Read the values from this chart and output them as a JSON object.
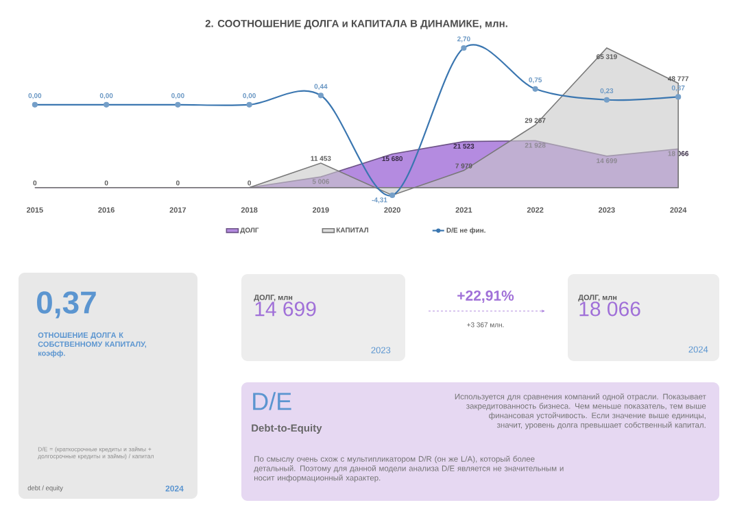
{
  "chart_data": [
    {
      "type": "area",
      "title": "2. СООТНОШЕНИЕ ДОЛГА и КАПИТАЛА В ДИНАМИКЕ, млн.",
      "categories": [
        "2015",
        "2016",
        "2017",
        "2018",
        "2019",
        "2020",
        "2021",
        "2022",
        "2023",
        "2024"
      ],
      "series": [
        {
          "name": "ДОЛГ",
          "color": "#b48be0",
          "values": [
            0,
            0,
            0,
            0,
            5006,
            15680,
            21523,
            21928,
            14699,
            18066
          ],
          "value_labels": [
            null,
            null,
            null,
            null,
            "5 006",
            "15 680",
            "21 523",
            "21 928",
            "14 699",
            "18 066"
          ]
        },
        {
          "name": "КАПИТАЛ",
          "color": "#c8c8c8",
          "values": [
            0,
            0,
            0,
            0,
            11453,
            -3600,
            7979,
            29267,
            65319,
            48777
          ],
          "value_labels": [
            "0",
            "0",
            "0",
            "0",
            "11 453",
            null,
            "7 979",
            "29 267",
            "65 319",
            "48 777"
          ]
        },
        {
          "name": "D/E не фин.",
          "type": "line",
          "axis": "y2",
          "marker": "circle",
          "color": "#3a76b0",
          "values": [
            0,
            0,
            0,
            0,
            0.44,
            -4.31,
            2.7,
            0.75,
            0.23,
            0.37
          ],
          "value_labels": [
            "0,00",
            "0,00",
            "0,00",
            "0,00",
            "0,44",
            "-4,31",
            "2,70",
            "0,75",
            "0,23",
            "0,37"
          ]
        }
      ],
      "tick_labels": "x",
      "legend": "bottom"
    },
    {
      "type": "other",
      "annotations": [
        "0,37",
        "ОТНОШЕНИЕ ДОЛГА К СОБСТВЕННОМУ КАПИТАЛУ, коэфф.",
        "D/E = (краткосрочные кредиты и займы + долгосрочные кредиты и займы) / капитал",
        "debt / equity",
        "2024",
        "ДОЛГ, млн",
        "14 699",
        "2023",
        "+22,91%",
        "+3 367 млн.",
        "ДОЛГ, млн",
        "18 066",
        "2024",
        "D/E",
        "Debt-to-Equity",
        "Используется для сравнения компаний одной отрасли. Показывает закредитованность бизнеса. Чем меньше показатель, тем выше финансовая устойчивость. Если значение выше единицы, значит, уровень долга превышает собственный капитал.",
        "По смыслу очень схож с мультипликатором D/R (он же L/A), который более детальный. Поэтому для данной модели анализа D/E является не значительным и носит информационный характер."
      ]
    }
  ]
}
